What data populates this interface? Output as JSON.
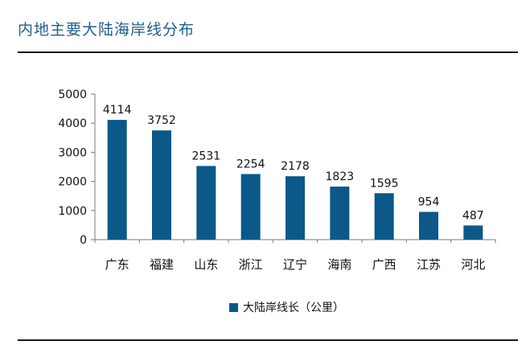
{
  "page": {
    "title": "内地主要大陆海岸线分布"
  },
  "colors": {
    "title": "#1f5f8b",
    "bar": "#0b5889",
    "axis": "#7a7a7a"
  },
  "chart_data": {
    "type": "bar",
    "title": "内地主要大陆海岸线分布",
    "xlabel": "",
    "ylabel": "",
    "categories": [
      "广东",
      "福建",
      "山东",
      "浙江",
      "辽宁",
      "海南",
      "广西",
      "江苏",
      "河北"
    ],
    "series": [
      {
        "name": "大陆岸线长（公里）",
        "values": [
          4114,
          3752,
          2531,
          2254,
          2178,
          1823,
          1595,
          954,
          487
        ]
      }
    ],
    "ylim": [
      0,
      5000
    ],
    "yticks": [
      0,
      1000,
      2000,
      3000,
      4000,
      5000
    ],
    "data_labels": true,
    "grid": false,
    "legend": "bottom-center"
  }
}
